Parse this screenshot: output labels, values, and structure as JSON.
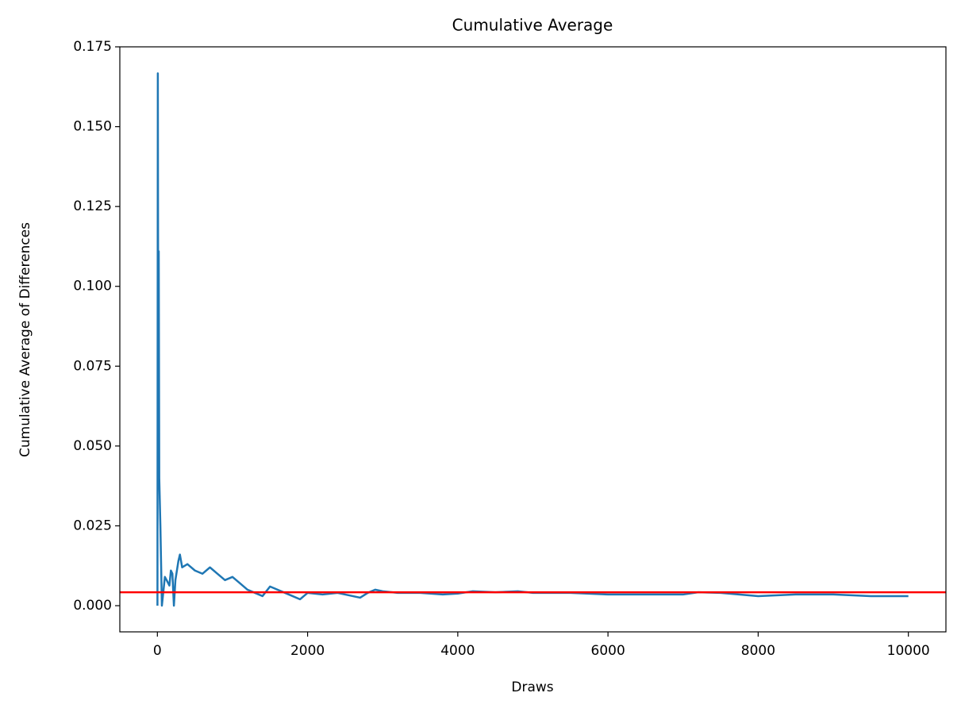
{
  "chart_data": {
    "type": "line",
    "title": "Cumulative Average",
    "xlabel": "Draws",
    "ylabel": "Cumulative Average of Differences",
    "x": [
      1,
      6,
      10,
      18,
      25,
      40,
      60,
      100,
      130,
      160,
      180,
      200,
      220,
      240,
      280,
      300,
      330,
      400,
      500,
      600,
      700,
      800,
      900,
      1000,
      1100,
      1200,
      1300,
      1400,
      1500,
      1600,
      1700,
      1800,
      1900,
      2000,
      2200,
      2400,
      2600,
      2700,
      2800,
      2900,
      3000,
      3200,
      3500,
      3800,
      4000,
      4200,
      4500,
      4800,
      5000,
      5500,
      6000,
      6500,
      7000,
      7200,
      7500,
      8000,
      8500,
      9000,
      9500,
      10000
    ],
    "series": [
      {
        "color": "#1f77b4",
        "values": [
          0,
          0.1667,
          0.1,
          0.111,
          0.04,
          0.025,
          0,
          0.009,
          0.0077,
          0.0063,
          0.011,
          0.01,
          0,
          0.008,
          0.014,
          0.016,
          0.012,
          0.013,
          0.011,
          0.01,
          0.012,
          0.01,
          0.008,
          0.009,
          0.007,
          0.005,
          0.004,
          0.003,
          0.006,
          0.005,
          0.004,
          0.003,
          0.002,
          0.004,
          0.0035,
          0.004,
          0.003,
          0.0025,
          0.004,
          0.005,
          0.0045,
          0.004,
          0.004,
          0.0035,
          0.0038,
          0.0045,
          0.0042,
          0.0045,
          0.004,
          0.004,
          0.0035,
          0.0035,
          0.0035,
          0.0042,
          0.004,
          0.003,
          0.0035,
          0.0035,
          0.003,
          0.003
        ]
      }
    ],
    "reference_line": {
      "y": 0.0042,
      "color": "#ff0000"
    },
    "xlim": [
      -500,
      10500
    ],
    "xticks": [
      0,
      2000,
      4000,
      6000,
      8000,
      10000
    ],
    "ylim": [
      -0.0082,
      0.175
    ],
    "yticks": [
      {
        "value": 0,
        "label": "0.000"
      },
      0.025,
      {
        "value": 0.05,
        "label": "0.050"
      },
      0.075,
      {
        "value": 0.1,
        "label": "0.100"
      },
      0.125,
      {
        "value": 0.15,
        "label": "0.150"
      },
      0.175
    ]
  }
}
